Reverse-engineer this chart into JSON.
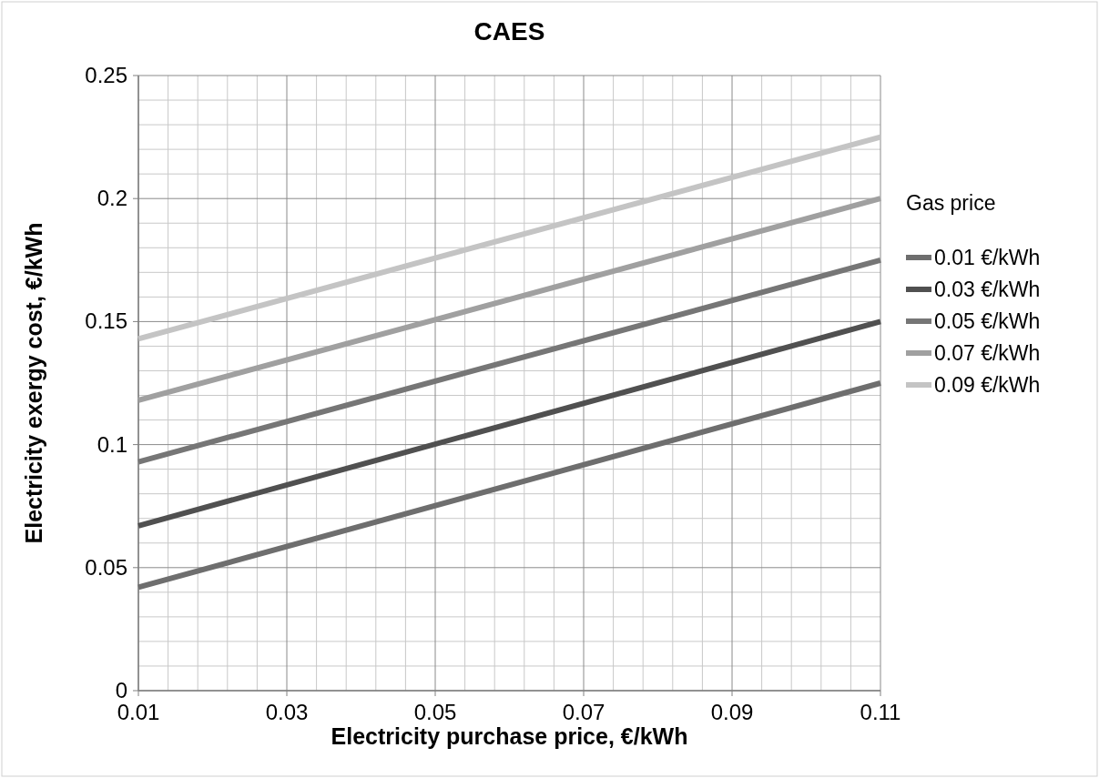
{
  "chart_data": {
    "type": "line",
    "title": "CAES",
    "xlabel": "Electricity purchase price, €/kWh",
    "ylabel": "Electricity exergy cost, €/kWh",
    "legend_title": "Gas price",
    "x": [
      0.01,
      0.11
    ],
    "series": [
      {
        "name": "0.01 €/kWh",
        "color": "#6e6e6e",
        "values": [
          0.042,
          0.125
        ]
      },
      {
        "name": "0.03 €/kWh",
        "color": "#505050",
        "values": [
          0.067,
          0.15
        ]
      },
      {
        "name": "0.05 €/kWh",
        "color": "#767676",
        "values": [
          0.093,
          0.175
        ]
      },
      {
        "name": "0.07 €/kWh",
        "color": "#a0a0a0",
        "values": [
          0.118,
          0.2
        ]
      },
      {
        "name": "0.09 €/kWh",
        "color": "#c4c4c4",
        "values": [
          0.143,
          0.225
        ]
      }
    ],
    "xlim": [
      0.01,
      0.11
    ],
    "xticks": [
      0.01,
      0.03,
      0.05,
      0.07,
      0.09,
      0.11
    ],
    "ylim": [
      0,
      0.25
    ],
    "yticks": [
      0,
      0.05,
      0.1,
      0.15,
      0.2,
      0.25
    ],
    "grid": true,
    "legend": "right",
    "marker": "none",
    "line_style": "solid"
  }
}
